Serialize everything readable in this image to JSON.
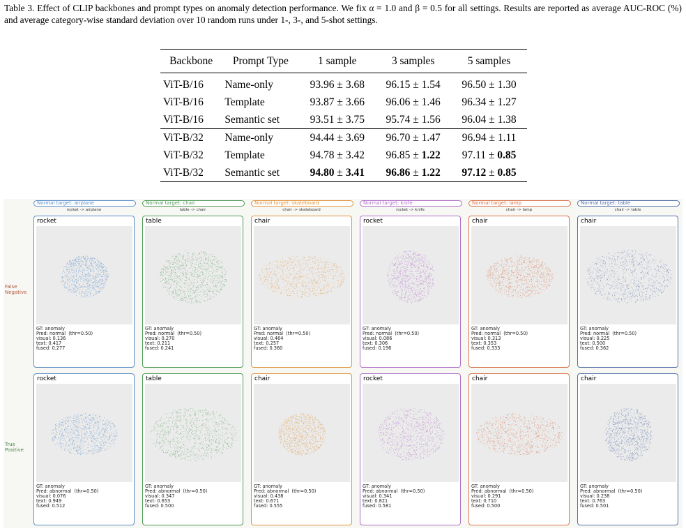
{
  "caption": "Table 3. Effect of CLIP backbones and prompt types on anomaly detection performance. We fix α = 1.0 and β = 0.5 for all settings. Results are reported as average AUC-ROC (%) and average category-wise standard deviation over 10 random runs under 1-, 3-, and 5-shot settings.",
  "table": {
    "header": [
      "Backbone",
      "Prompt Type",
      "1 sample",
      "3 samples",
      "5 samples"
    ],
    "separator": "±",
    "groups": [
      [
        {
          "backbone": "ViT-B/16",
          "prompt": "Name-only",
          "results": [
            {
              "mean": "93.96",
              "std": "3.68",
              "bold": [
                false,
                false
              ]
            },
            {
              "mean": "96.15",
              "std": "1.54",
              "bold": [
                false,
                false
              ]
            },
            {
              "mean": "96.50",
              "std": "1.30",
              "bold": [
                false,
                false
              ]
            }
          ]
        },
        {
          "backbone": "ViT-B/16",
          "prompt": "Template",
          "results": [
            {
              "mean": "93.87",
              "std": "3.66",
              "bold": [
                false,
                false
              ]
            },
            {
              "mean": "96.06",
              "std": "1.46",
              "bold": [
                false,
                false
              ]
            },
            {
              "mean": "96.34",
              "std": "1.27",
              "bold": [
                false,
                false
              ]
            }
          ]
        },
        {
          "backbone": "ViT-B/16",
          "prompt": "Semantic set",
          "results": [
            {
              "mean": "93.51",
              "std": "3.75",
              "bold": [
                false,
                false
              ]
            },
            {
              "mean": "95.74",
              "std": "1.56",
              "bold": [
                false,
                false
              ]
            },
            {
              "mean": "96.04",
              "std": "1.38",
              "bold": [
                false,
                false
              ]
            }
          ]
        }
      ],
      [
        {
          "backbone": "ViT-B/32",
          "prompt": "Name-only",
          "results": [
            {
              "mean": "94.44",
              "std": "3.69",
              "bold": [
                false,
                false
              ]
            },
            {
              "mean": "96.70",
              "std": "1.47",
              "bold": [
                false,
                false
              ]
            },
            {
              "mean": "96.94",
              "std": "1.11",
              "bold": [
                false,
                false
              ]
            }
          ]
        },
        {
          "backbone": "ViT-B/32",
          "prompt": "Template",
          "results": [
            {
              "mean": "94.78",
              "std": "3.42",
              "bold": [
                false,
                false
              ]
            },
            {
              "mean": "96.85",
              "std": "1.22",
              "bold": [
                false,
                true
              ]
            },
            {
              "mean": "97.11",
              "std": "0.85",
              "bold": [
                false,
                true
              ]
            }
          ]
        },
        {
          "backbone": "ViT-B/32",
          "prompt": "Semantic set",
          "results": [
            {
              "mean": "94.80",
              "std": "3.41",
              "bold": [
                true,
                true
              ]
            },
            {
              "mean": "96.86",
              "std": "1.22",
              "bold": [
                true,
                true
              ]
            },
            {
              "mean": "97.12",
              "std": "0.85",
              "bold": [
                true,
                true
              ]
            }
          ]
        }
      ]
    ]
  },
  "figure": {
    "row_labels": [
      {
        "text": "False Negative",
        "color": "#b5553a"
      },
      {
        "text": "True Positive",
        "color": "#4f8a4f"
      }
    ],
    "columns": [
      {
        "target": "Normal target: airplane",
        "pair": "rocket -> airplane",
        "color": "#5b8fc9",
        "panels": [
          {
            "label": "rocket",
            "lines": [
              "GT: anomaly",
              "Pred: normal  (thr=0.50)",
              "visual: 0.136",
              "text: 0.417",
              "fused: 0.277"
            ]
          },
          {
            "label": "rocket",
            "lines": [
              "GT: anomaly",
              "Pred: abnormal  (thr=0.50)",
              "visual: 0.076",
              "text: 0.949",
              "fused: 0.512"
            ]
          }
        ]
      },
      {
        "target": "Normal target: chair",
        "pair": "table -> chair",
        "color": "#4f9a55",
        "panels": [
          {
            "label": "table",
            "lines": [
              "GT: anomaly",
              "Pred: normal  (thr=0.50)",
              "visual: 0.270",
              "text: 0.211",
              "fused: 0.241"
            ]
          },
          {
            "label": "table",
            "lines": [
              "GT: anomaly",
              "Pred: abnormal  (thr=0.50)",
              "visual: 0.347",
              "text: 0.653",
              "fused: 0.500"
            ]
          }
        ]
      },
      {
        "target": "Normal target: skateboard",
        "pair": "chair -> skateboard",
        "color": "#e0953f",
        "panels": [
          {
            "label": "chair",
            "lines": [
              "GT: anomaly",
              "Pred: normal  (thr=0.50)",
              "visual: 0.464",
              "text: 0.257",
              "fused: 0.360"
            ]
          },
          {
            "label": "chair",
            "lines": [
              "GT: anomaly",
              "Pred: abnormal  (thr=0.50)",
              "visual: 0.438",
              "text: 0.671",
              "fused: 0.555"
            ]
          }
        ]
      },
      {
        "target": "Normal target: knife",
        "pair": "rocket -> knife",
        "color": "#b070c8",
        "panels": [
          {
            "label": "rocket",
            "lines": [
              "GT: anomaly",
              "Pred: normal  (thr=0.50)",
              "visual: 0.086",
              "text: 0.306",
              "fused: 0.196"
            ]
          },
          {
            "label": "rocket",
            "lines": [
              "GT: anomaly",
              "Pred: abnormal  (thr=0.50)",
              "visual: 0.341",
              "text: 0.821",
              "fused: 0.581"
            ]
          }
        ]
      },
      {
        "target": "Normal target: lamp",
        "pair": "chair -> lamp",
        "color": "#d9734a",
        "panels": [
          {
            "label": "chair",
            "lines": [
              "GT: anomaly",
              "Pred: normal  (thr=0.50)",
              "visual: 0.313",
              "text: 0.353",
              "fused: 0.333"
            ]
          },
          {
            "label": "chair",
            "lines": [
              "GT: anomaly",
              "Pred: abnormal  (thr=0.50)",
              "visual: 0.291",
              "text: 0.710",
              "fused: 0.500"
            ]
          }
        ]
      },
      {
        "target": "Normal target: table",
        "pair": "chair -> table",
        "color": "#5570a8",
        "panels": [
          {
            "label": "chair",
            "lines": [
              "GT: anomaly",
              "Pred: normal  (thr=0.50)",
              "visual: 0.225",
              "text: 0.500",
              "fused: 0.362"
            ]
          },
          {
            "label": "chair",
            "lines": [
              "GT: anomaly",
              "Pred: abnormal  (thr=0.50)",
              "visual: 0.238",
              "text: 0.763",
              "fused: 0.501"
            ]
          }
        ]
      }
    ]
  }
}
